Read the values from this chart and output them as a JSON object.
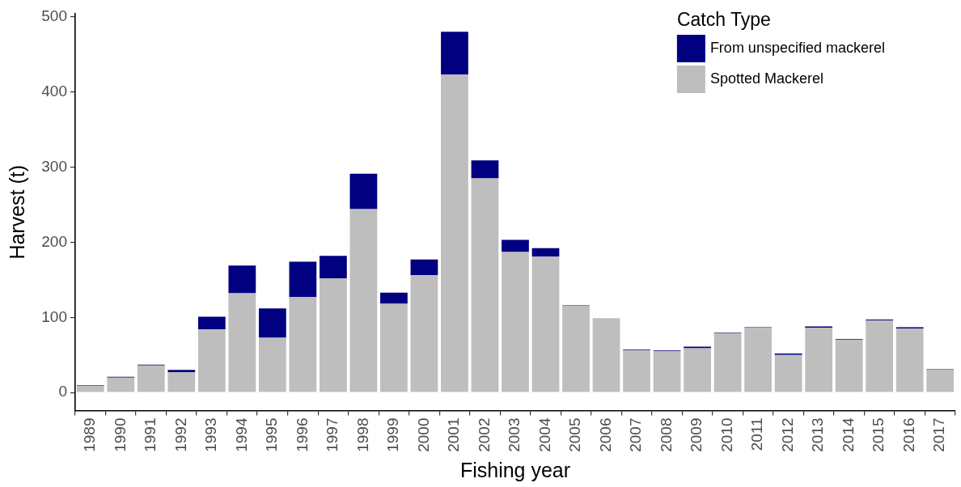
{
  "chart_data": {
    "type": "bar",
    "stacked": true,
    "xlabel": "Fishing year",
    "ylabel": "Harvest (t)",
    "legend_title": "Catch Type",
    "legend": "top right",
    "categories": [
      "1989",
      "1990",
      "1991",
      "1992",
      "1993",
      "1994",
      "1995",
      "1996",
      "1997",
      "1998",
      "1999",
      "2000",
      "2001",
      "2002",
      "2003",
      "2004",
      "2005",
      "2006",
      "2007",
      "2008",
      "2009",
      "2010",
      "2011",
      "2012",
      "2013",
      "2014",
      "2015",
      "2016",
      "2017"
    ],
    "series": [
      {
        "name": "Spotted Mackerel",
        "color": "#bebebe",
        "values": [
          9,
          20,
          36,
          27,
          84,
          132,
          73,
          127,
          152,
          244,
          118,
          156,
          423,
          285,
          187,
          181,
          115,
          99,
          56,
          55,
          59,
          79,
          86,
          50,
          86,
          70,
          96,
          85,
          30
        ]
      },
      {
        "name": "From unspecified mackerel",
        "color": "#000080",
        "values": [
          1,
          1,
          1,
          3,
          17,
          37,
          39,
          47,
          30,
          47,
          15,
          21,
          57,
          24,
          16,
          11,
          1,
          0,
          1,
          1,
          2,
          1,
          1,
          2,
          2,
          1,
          1,
          2,
          1
        ]
      }
    ],
    "ylim": [
      -24,
      504
    ],
    "yticks": [
      0,
      100,
      200,
      300,
      400,
      500
    ]
  }
}
